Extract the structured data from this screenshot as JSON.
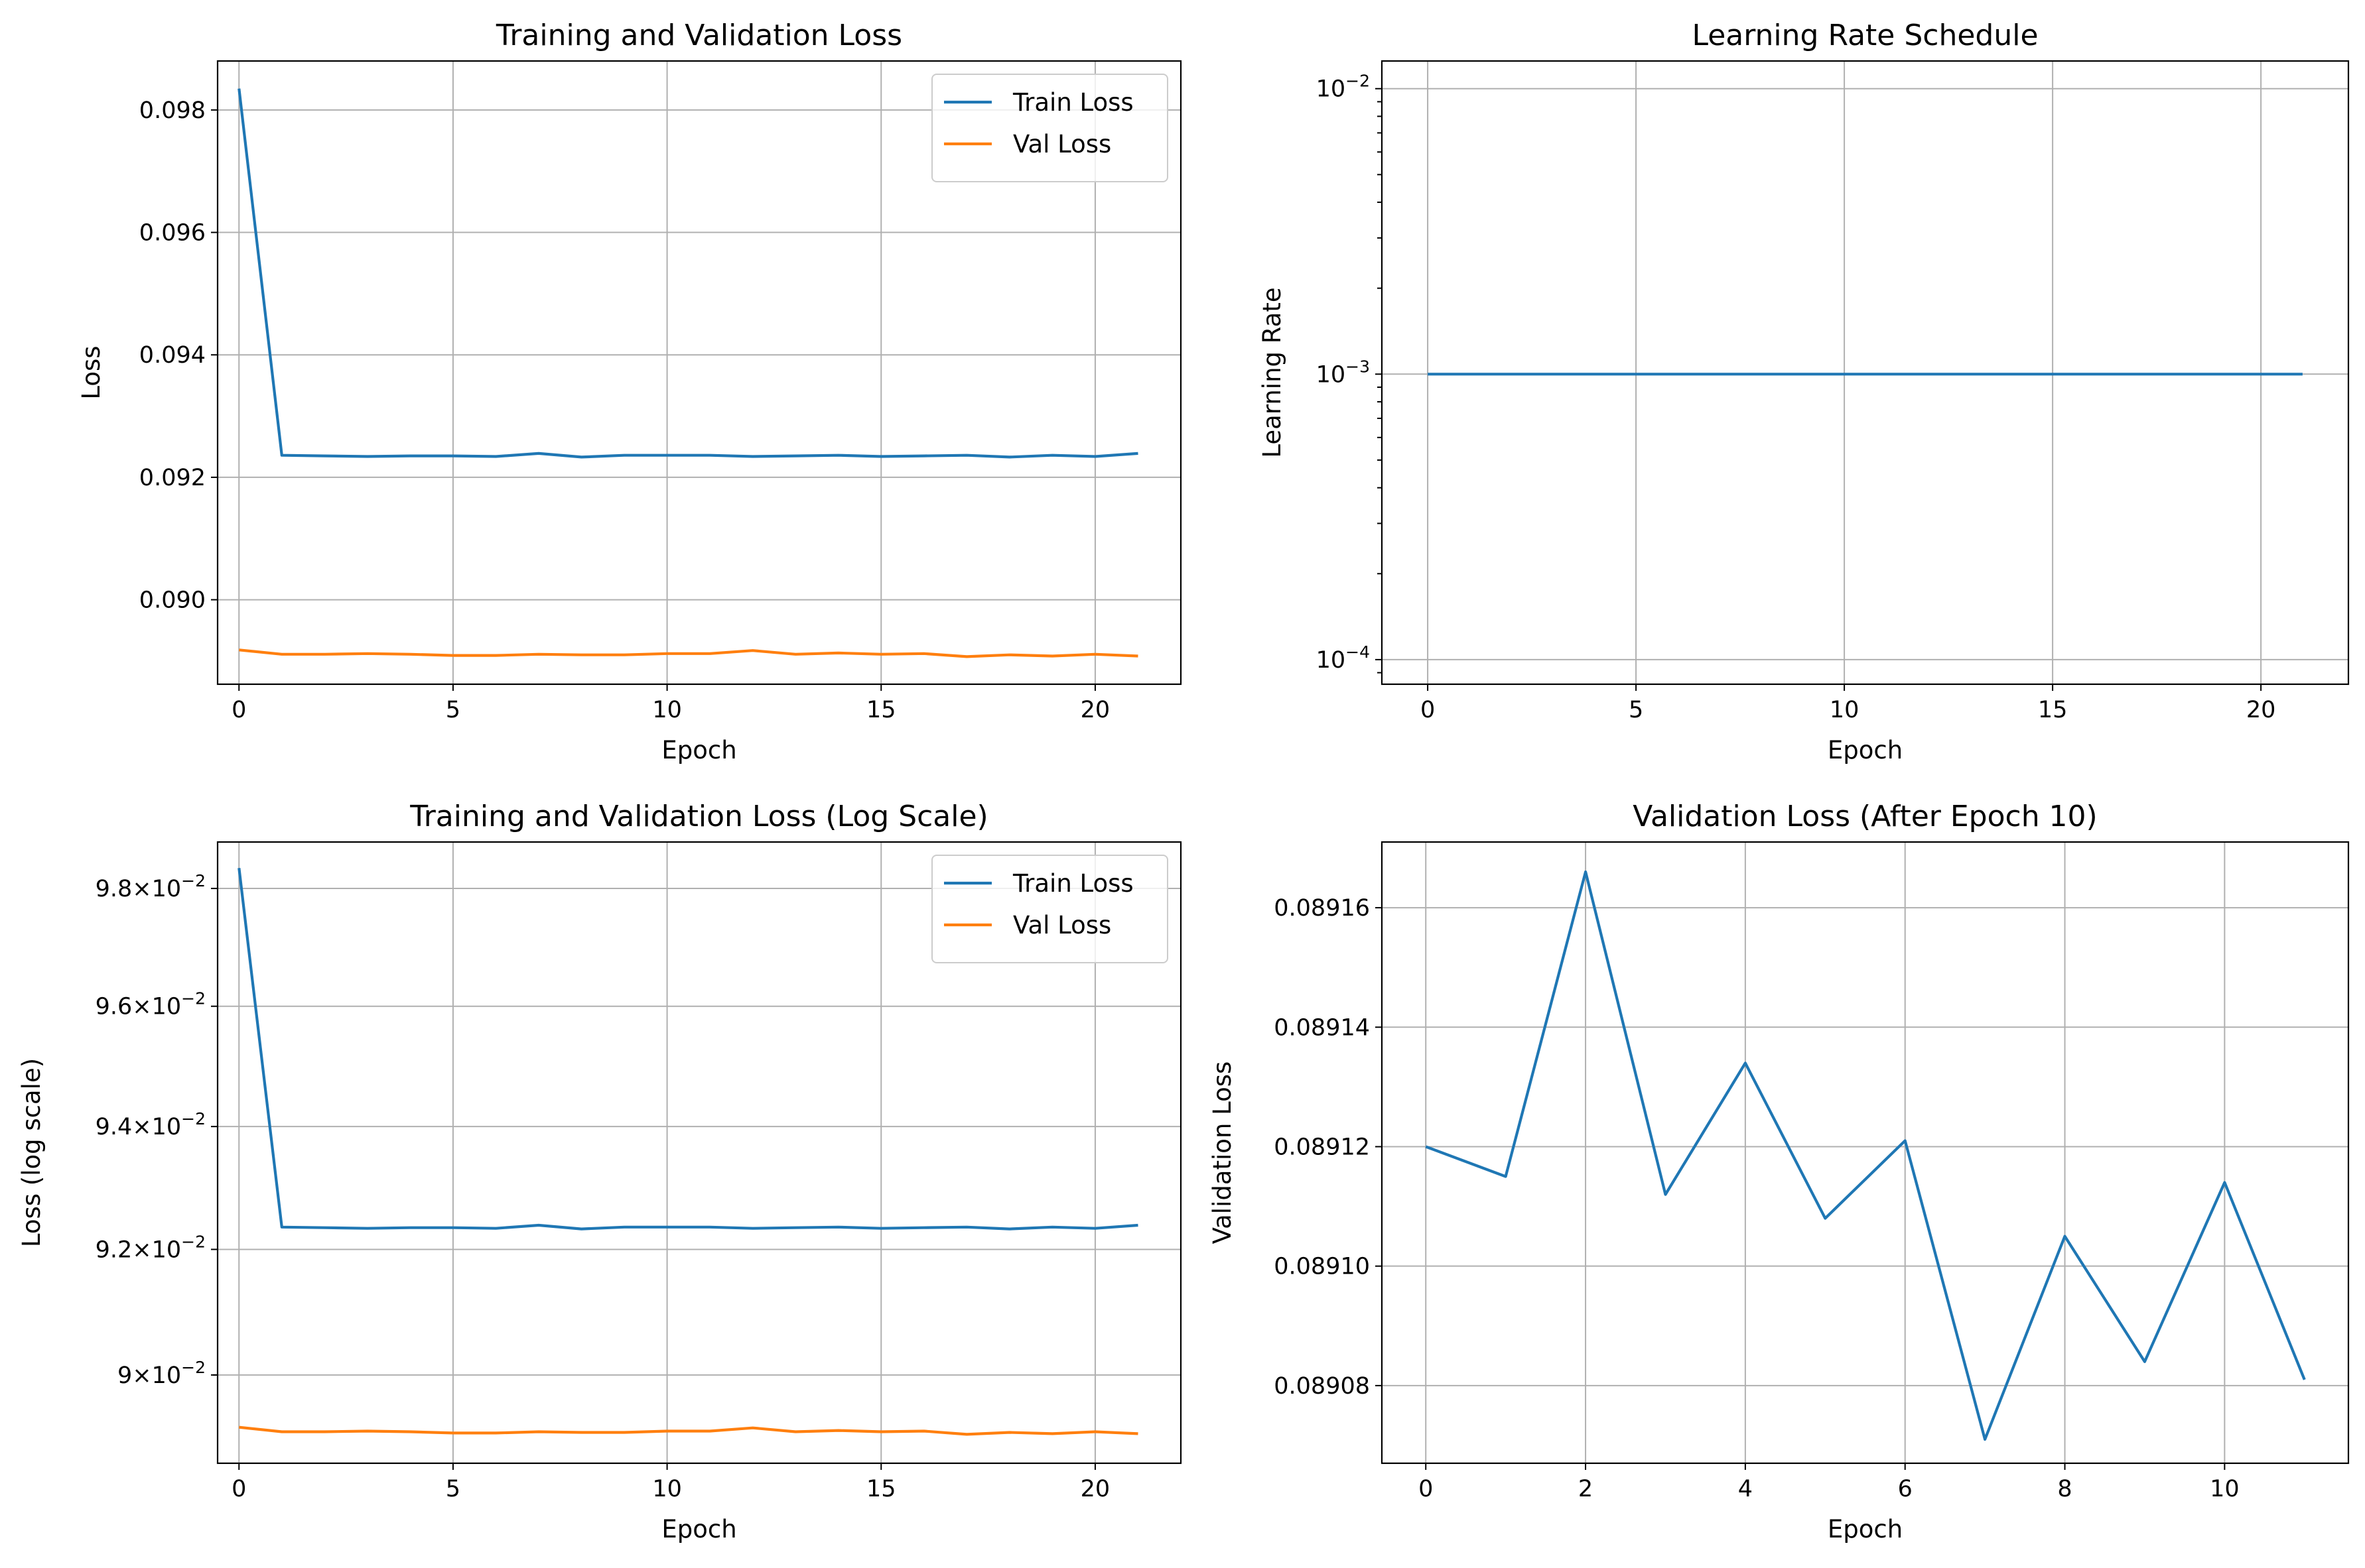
{
  "chart_data": [
    {
      "type": "line",
      "title": "Training and Validation Loss",
      "xlabel": "Epoch",
      "ylabel": "Loss",
      "xlim": [
        -0.5,
        22
      ],
      "ylim": [
        0.08862,
        0.0988
      ],
      "xticks": [
        0,
        5,
        10,
        15,
        20
      ],
      "yticks": [
        0.09,
        0.092,
        0.094,
        0.096,
        0.098
      ],
      "yticklabels": [
        "0.090",
        "0.092",
        "0.094",
        "0.096",
        "0.098"
      ],
      "yscale": "linear",
      "grid": true,
      "legend": "top-right",
      "x": [
        0,
        1,
        2,
        3,
        4,
        5,
        6,
        7,
        8,
        9,
        10,
        11,
        12,
        13,
        14,
        15,
        16,
        17,
        18,
        19,
        20,
        21
      ],
      "series": [
        {
          "name": "Train Loss",
          "color": "#1f77b4",
          "values": [
            0.09835,
            0.09236,
            0.09235,
            0.09234,
            0.09235,
            0.09235,
            0.09234,
            0.09239,
            0.09233,
            0.09236,
            0.09236,
            0.09236,
            0.09234,
            0.09235,
            0.09236,
            0.09234,
            0.09235,
            0.09236,
            0.09233,
            0.09236,
            0.09234,
            0.09239
          ]
        },
        {
          "name": "Val Loss",
          "color": "#ff7f0e",
          "values": [
            0.08918,
            0.08911,
            0.08911,
            0.08912,
            0.08911,
            0.08909,
            0.08909,
            0.08911,
            0.0891,
            0.0891,
            0.08912,
            0.08912,
            0.08917,
            0.08911,
            0.08913,
            0.08911,
            0.08912,
            0.08907,
            0.0891,
            0.08908,
            0.08911,
            0.08908
          ]
        }
      ]
    },
    {
      "type": "line",
      "title": "Learning Rate Schedule",
      "xlabel": "Epoch",
      "ylabel": "Learning Rate",
      "xlim": [
        -1.1,
        22.1
      ],
      "ylim": [
        8.2e-05,
        0.0125
      ],
      "xticks": [
        0,
        5,
        10,
        15,
        20
      ],
      "yticks": [
        0.0001,
        0.001,
        0.01
      ],
      "yticklabels": [
        {
          "base": "10",
          "exp": "−4"
        },
        {
          "base": "10",
          "exp": "−3"
        },
        {
          "base": "10",
          "exp": "−2"
        }
      ],
      "yscale": "log",
      "grid": true,
      "legend": "none",
      "x": [
        0,
        1,
        2,
        3,
        4,
        5,
        6,
        7,
        8,
        9,
        10,
        11,
        12,
        13,
        14,
        15,
        16,
        17,
        18,
        19,
        20,
        21
      ],
      "series": [
        {
          "color": "#1f77b4",
          "values": [
            0.001,
            0.001,
            0.001,
            0.001,
            0.001,
            0.001,
            0.001,
            0.001,
            0.001,
            0.001,
            0.001,
            0.001,
            0.001,
            0.001,
            0.001,
            0.001,
            0.001,
            0.001,
            0.001,
            0.001,
            0.001,
            0.001
          ]
        }
      ]
    },
    {
      "type": "line",
      "title": "Training and Validation Loss (Log Scale)",
      "xlabel": "Epoch",
      "ylabel": "Loss (log scale)",
      "xlim": [
        -0.5,
        22
      ],
      "ylim": [
        0.08862,
        0.0988
      ],
      "xticks": [
        0,
        5,
        10,
        15,
        20
      ],
      "yticks": [
        0.09,
        0.092,
        0.094,
        0.096,
        0.098
      ],
      "yticklabels": [
        {
          "mant": "9",
          "exp": "−2"
        },
        {
          "mant": "9.2",
          "exp": "−2"
        },
        {
          "mant": "9.4",
          "exp": "−2"
        },
        {
          "mant": "9.6",
          "exp": "−2"
        },
        {
          "mant": "9.8",
          "exp": "−2"
        }
      ],
      "yscale": "log",
      "grid": true,
      "legend": "top-right",
      "x": [
        0,
        1,
        2,
        3,
        4,
        5,
        6,
        7,
        8,
        9,
        10,
        11,
        12,
        13,
        14,
        15,
        16,
        17,
        18,
        19,
        20,
        21
      ],
      "series": [
        {
          "name": "Train Loss",
          "color": "#1f77b4",
          "values": [
            0.09835,
            0.09236,
            0.09235,
            0.09234,
            0.09235,
            0.09235,
            0.09234,
            0.09239,
            0.09233,
            0.09236,
            0.09236,
            0.09236,
            0.09234,
            0.09235,
            0.09236,
            0.09234,
            0.09235,
            0.09236,
            0.09233,
            0.09236,
            0.09234,
            0.09239
          ]
        },
        {
          "name": "Val Loss",
          "color": "#ff7f0e",
          "values": [
            0.08918,
            0.08911,
            0.08911,
            0.08912,
            0.08911,
            0.08909,
            0.08909,
            0.08911,
            0.0891,
            0.0891,
            0.08912,
            0.08912,
            0.08917,
            0.08911,
            0.08913,
            0.08911,
            0.08912,
            0.08907,
            0.0891,
            0.08908,
            0.08911,
            0.08908
          ]
        }
      ]
    },
    {
      "type": "line",
      "title": "Validation Loss (After Epoch 10)",
      "xlabel": "Epoch",
      "ylabel": "Validation Loss",
      "xlim": [
        -0.55,
        11.55
      ],
      "ylim": [
        0.089067,
        0.089171
      ],
      "xticks": [
        0,
        2,
        4,
        6,
        8,
        10
      ],
      "yticks": [
        0.08908,
        0.0891,
        0.08912,
        0.08914,
        0.08916
      ],
      "yticklabels": [
        "0.08908",
        "0.08910",
        "0.08912",
        "0.08914",
        "0.08916"
      ],
      "yscale": "linear",
      "grid": true,
      "legend": "none",
      "x": [
        0,
        1,
        2,
        3,
        4,
        5,
        6,
        7,
        8,
        9,
        10,
        11
      ],
      "series": [
        {
          "color": "#1f77b4",
          "values": [
            0.08912,
            0.089115,
            0.089166,
            0.089112,
            0.089134,
            0.089108,
            0.089121,
            0.089071,
            0.089105,
            0.089084,
            0.089114,
            0.089081
          ]
        }
      ]
    }
  ]
}
